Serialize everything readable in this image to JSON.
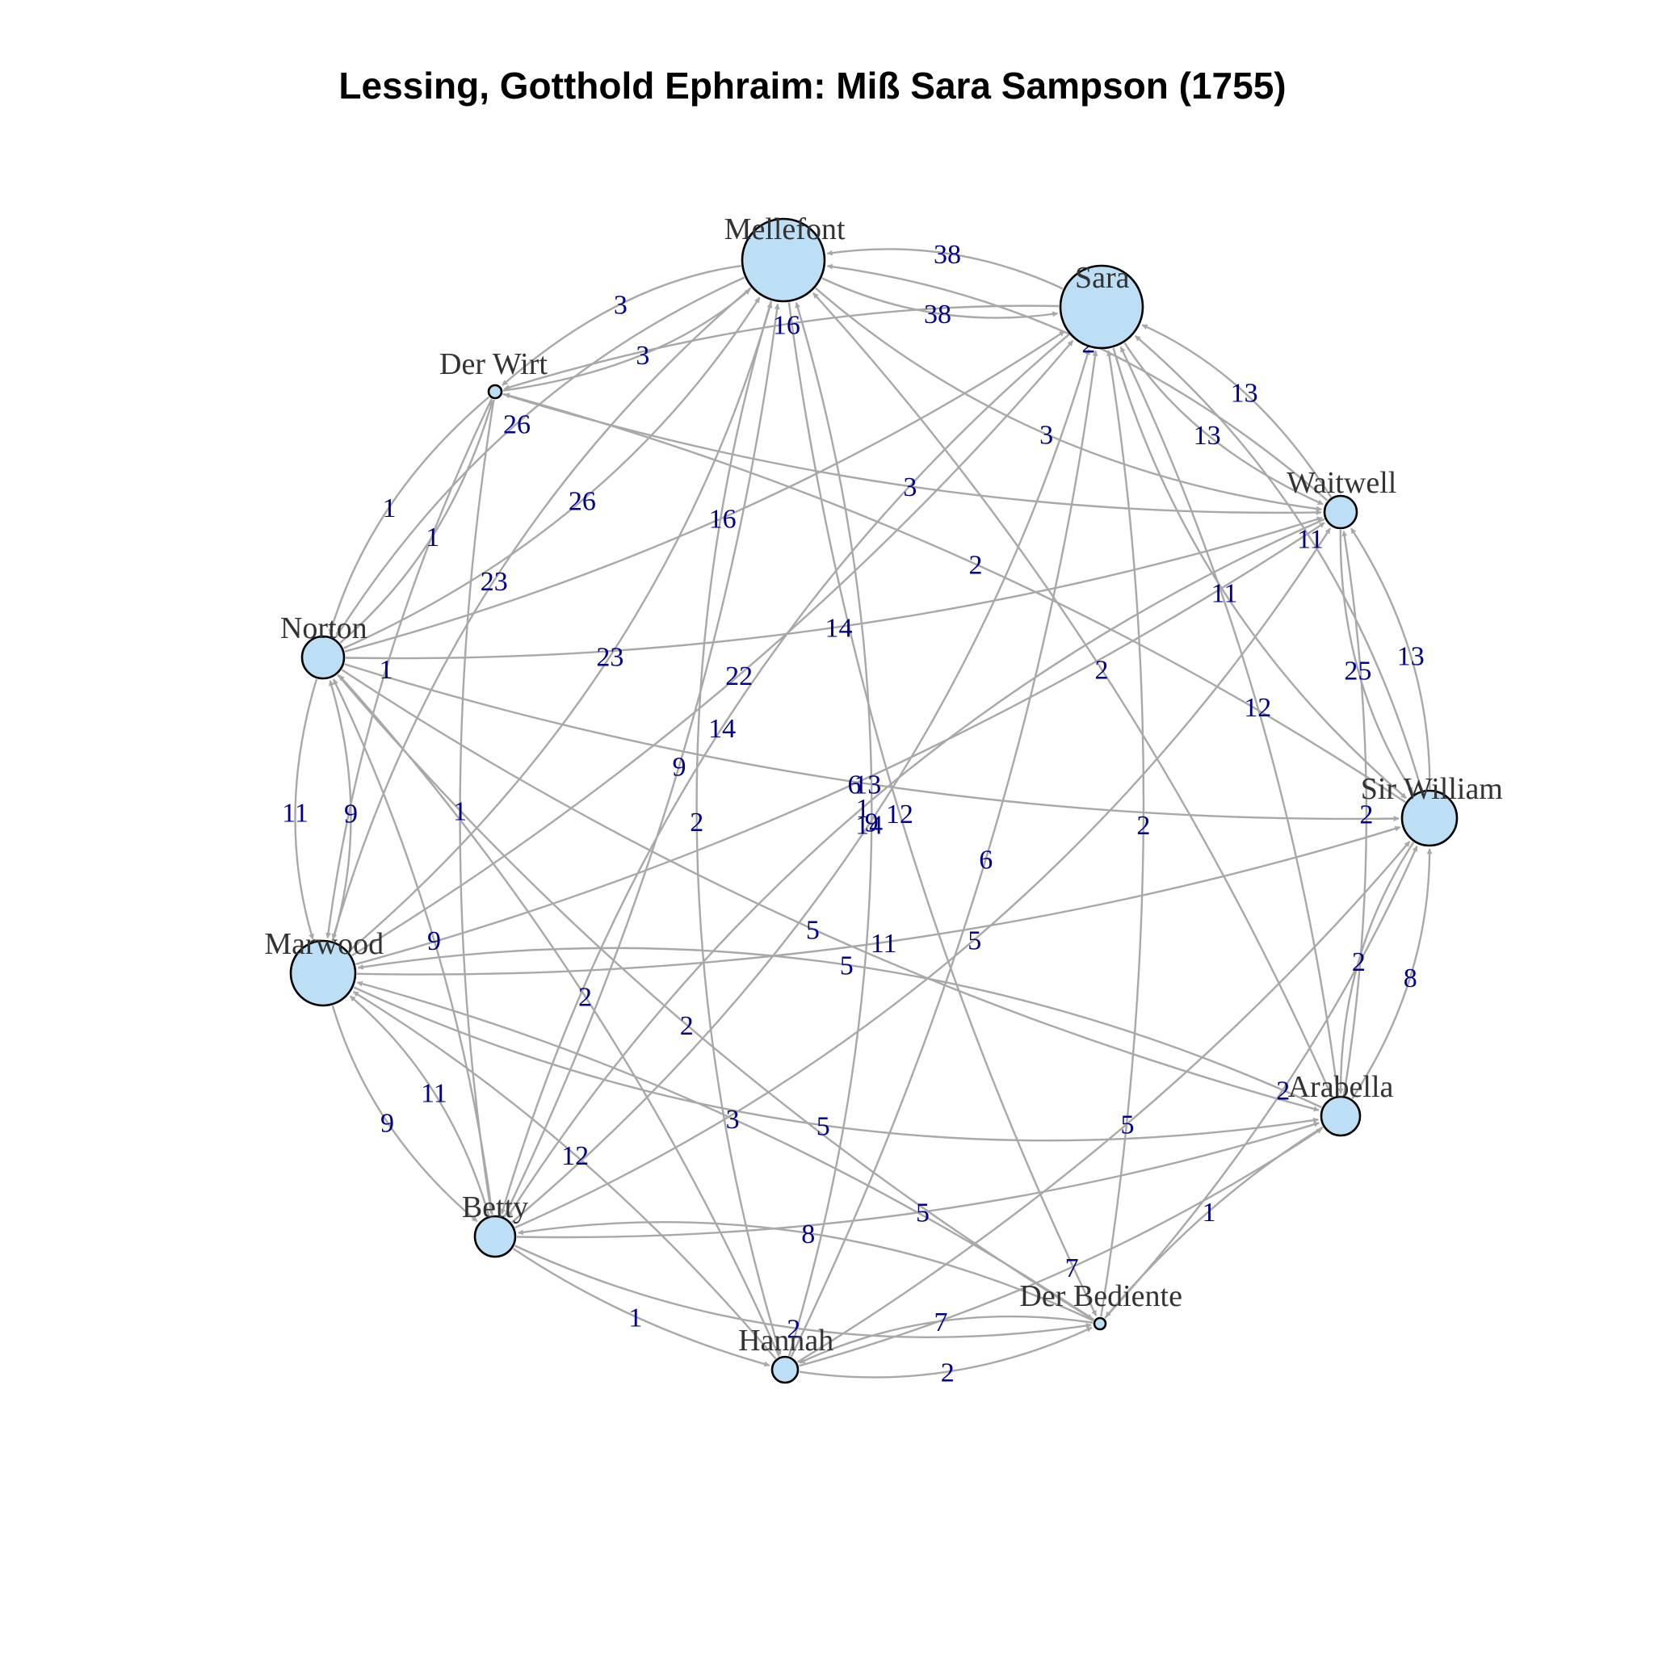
{
  "title": "Lessing, Gotthold Ephraim: Miß Sara Sampson (1755)",
  "colors": {
    "node_fill": "#bddff5",
    "edge": "#a8a8a8",
    "edge_label": "#00008b",
    "node_label": "#333333"
  },
  "nodes": [
    {
      "id": "Mellefont",
      "label": "Mellefont"
    },
    {
      "id": "Sara",
      "label": "Sara"
    },
    {
      "id": "Der Wirt",
      "label": "Der Wirt"
    },
    {
      "id": "Waitwell",
      "label": "Waitwell"
    },
    {
      "id": "Norton",
      "label": "Norton"
    },
    {
      "id": "Sir William",
      "label": "Sir William"
    },
    {
      "id": "Marwood",
      "label": "Marwood"
    },
    {
      "id": "Arabella",
      "label": "Arabella"
    },
    {
      "id": "Betty",
      "label": "Betty"
    },
    {
      "id": "Der Bediente",
      "label": "Der Bediente"
    },
    {
      "id": "Hannah",
      "label": "Hannah"
    }
  ],
  "edges": [
    {
      "source": "Mellefont",
      "target": "Sara",
      "weight": "38"
    },
    {
      "source": "Sara",
      "target": "Mellefont",
      "weight": "38"
    },
    {
      "source": "Der Wirt",
      "target": "Mellefont",
      "weight": "3"
    },
    {
      "source": "Mellefont",
      "target": "Der Wirt",
      "weight": "3"
    },
    {
      "source": "Norton",
      "target": "Mellefont",
      "weight": "26"
    },
    {
      "source": "Mellefont",
      "target": "Norton",
      "weight": "26"
    },
    {
      "source": "Marwood",
      "target": "Mellefont",
      "weight": "23"
    },
    {
      "source": "Mellefont",
      "target": "Marwood",
      "weight": "23"
    },
    {
      "source": "Mellefont",
      "target": "Waitwell",
      "weight": "3"
    },
    {
      "source": "Waitwell",
      "target": "Mellefont",
      "weight": "2"
    },
    {
      "source": "Sara",
      "target": "Waitwell",
      "weight": "13"
    },
    {
      "source": "Waitwell",
      "target": "Sara",
      "weight": "13"
    },
    {
      "source": "Sara",
      "target": "Der Wirt",
      "weight": "16"
    },
    {
      "source": "Betty",
      "target": "Sara",
      "weight": "14"
    },
    {
      "source": "Sara",
      "target": "Betty",
      "weight": "14"
    },
    {
      "source": "Norton",
      "target": "Sara",
      "weight": "16"
    },
    {
      "source": "Sir William",
      "target": "Sara",
      "weight": "11"
    },
    {
      "source": "Sara",
      "target": "Sir William",
      "weight": "11"
    },
    {
      "source": "Waitwell",
      "target": "Sir William",
      "weight": "25"
    },
    {
      "source": "Sir William",
      "target": "Waitwell",
      "weight": "13"
    },
    {
      "source": "Norton",
      "target": "Marwood",
      "weight": "11"
    },
    {
      "source": "Marwood",
      "target": "Norton",
      "weight": "9"
    },
    {
      "source": "Betty",
      "target": "Marwood",
      "weight": "11"
    },
    {
      "source": "Marwood",
      "target": "Betty",
      "weight": "9"
    },
    {
      "source": "Norton",
      "target": "Der Wirt",
      "weight": "1"
    },
    {
      "source": "Der Wirt",
      "target": "Norton",
      "weight": "1"
    },
    {
      "source": "Arabella",
      "target": "Sir William",
      "weight": "8"
    },
    {
      "source": "Sir William",
      "target": "Arabella",
      "weight": "2"
    },
    {
      "source": "Betty",
      "target": "Hannah",
      "weight": "1"
    },
    {
      "source": "Hannah",
      "target": "Der Bediente",
      "weight": "2"
    },
    {
      "source": "Der Bediente",
      "target": "Hannah",
      "weight": "7"
    },
    {
      "source": "Arabella",
      "target": "Der Bediente",
      "weight": "1"
    },
    {
      "source": "Hannah",
      "target": "Mellefont",
      "weight": "9"
    },
    {
      "source": "Mellefont",
      "target": "Der Bediente",
      "weight": "12"
    },
    {
      "source": "Marwood",
      "target": "Arabella",
      "weight": "5"
    },
    {
      "source": "Arabella",
      "target": "Marwood",
      "weight": "5"
    },
    {
      "source": "Norton",
      "target": "Sir William",
      "weight": "13"
    },
    {
      "source": "Marwood",
      "target": "Sir William",
      "weight": "11"
    },
    {
      "source": "Betty",
      "target": "Waitwell",
      "weight": "5"
    },
    {
      "source": "Hannah",
      "target": "Sara",
      "weight": "6"
    },
    {
      "source": "Arabella",
      "target": "Mellefont",
      "weight": "2"
    },
    {
      "source": "Norton",
      "target": "Waitwell",
      "weight": "14"
    },
    {
      "source": "Marwood",
      "target": "Waitwell",
      "weight": "6"
    },
    {
      "source": "Der Bediente",
      "target": "Sara",
      "weight": "2"
    },
    {
      "source": "Norton",
      "target": "Arabella",
      "weight": "5"
    },
    {
      "source": "Sir William",
      "target": "Der Wirt",
      "weight": "2"
    },
    {
      "source": "Der Wirt",
      "target": "Betty",
      "weight": "1"
    },
    {
      "source": "Arabella",
      "target": "Sara",
      "weight": "12"
    },
    {
      "source": "Hannah",
      "target": "Norton",
      "weight": "2"
    },
    {
      "source": "Betty",
      "target": "Der Bediente",
      "weight": "2"
    },
    {
      "source": "Hannah",
      "target": "Marwood",
      "weight": "12"
    },
    {
      "source": "Der Bediente",
      "target": "Betty",
      "weight": "8"
    },
    {
      "source": "Hannah",
      "target": "Arabella",
      "weight": "7"
    },
    {
      "source": "Der Wirt",
      "target": "Marwood",
      "weight": "1"
    },
    {
      "source": "Betty",
      "target": "Norton",
      "weight": "9"
    },
    {
      "source": "Der Bediente",
      "target": "Sir William",
      "weight": "2"
    },
    {
      "source": "Hannah",
      "target": "Sir William",
      "weight": "5"
    },
    {
      "source": "Betty",
      "target": "Mellefont",
      "weight": "9"
    },
    {
      "source": "Marwood",
      "target": "Sara",
      "weight": "22"
    },
    {
      "source": "Der Wirt",
      "target": "Waitwell",
      "weight": "3"
    },
    {
      "source": "Waitwell",
      "target": "Betty",
      "weight": "1"
    },
    {
      "source": "Der Bediente",
      "target": "Marwood",
      "weight": "3"
    },
    {
      "source": "Arabella",
      "target": "Waitwell",
      "weight": "2"
    },
    {
      "source": "Norton",
      "target": "Der Bediente",
      "weight": "2"
    },
    {
      "source": "Betty",
      "target": "Arabella",
      "weight": "5"
    },
    {
      "source": "Mellefont",
      "target": "Hannah",
      "weight": "2"
    }
  ]
}
